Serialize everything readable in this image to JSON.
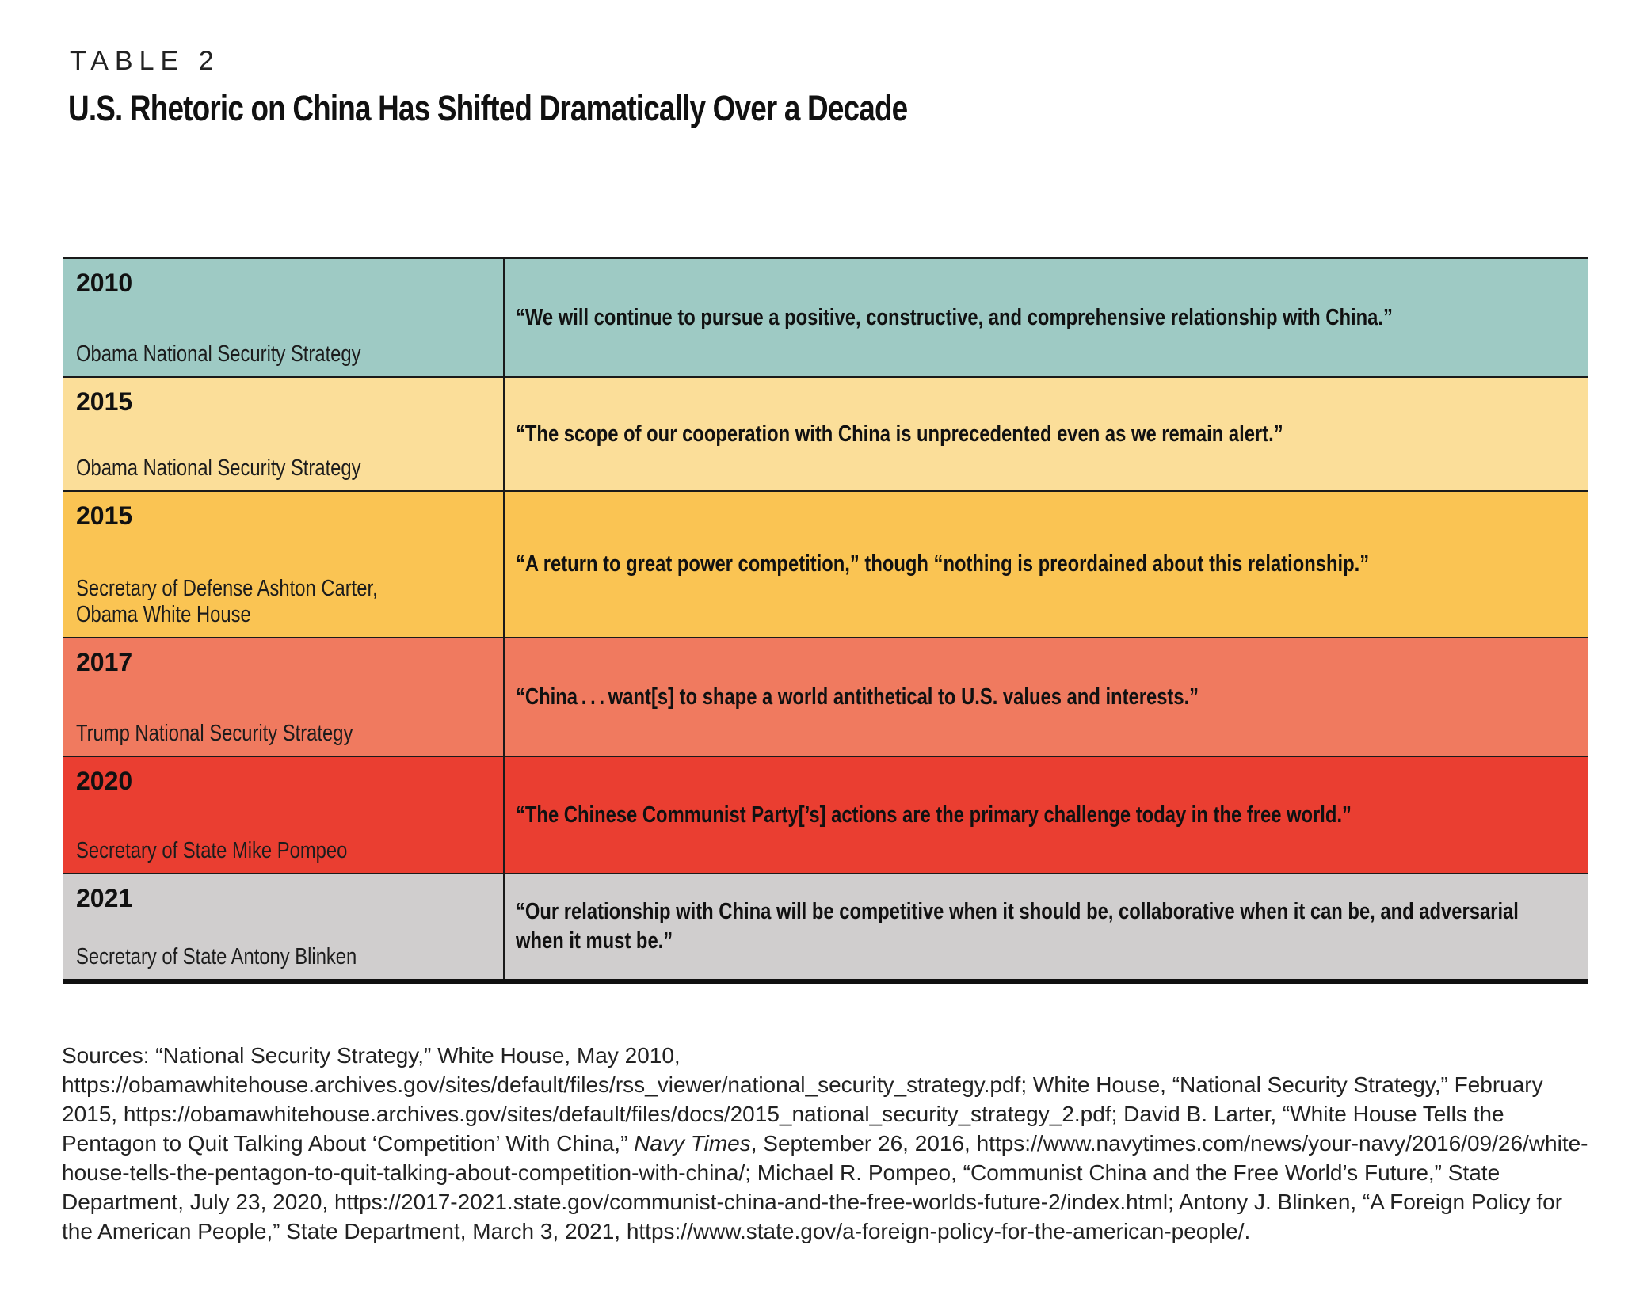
{
  "page": {
    "kicker": "TABLE 2",
    "title": "U.S. Rhetoric on China Has Shifted Dramatically Over a Decade"
  },
  "table": {
    "rows": [
      {
        "year": "2010",
        "source": "Obama National Security Strategy",
        "quote": "“We will continue to pursue a positive, constructive, and comprehensive relationship with China.”",
        "bg": "#9ECAC4"
      },
      {
        "year": "2015",
        "source": "Obama National Security Strategy",
        "quote": "“The scope of our cooperation with China is unprecedented even as we remain alert.”",
        "bg": "#FBDE99"
      },
      {
        "year": "2015",
        "source": "Secretary of Defense Ashton Carter,\nObama White House",
        "quote": "“A return to great power competition,” though “nothing is preordained about this relationship.”",
        "bg": "#FAC453"
      },
      {
        "year": "2017",
        "source": "Trump National Security Strategy",
        "quote": "“China . . . want[s] to shape a world antithetical to U.S. values and interests.”",
        "bg": "#F07A5F"
      },
      {
        "year": "2020",
        "source": "Secretary of State Mike Pompeo",
        "quote": "“The Chinese Communist Party[’s] actions are the primary challenge today in the free world.”",
        "bg": "#EA3E31"
      },
      {
        "year": "2021",
        "source": "Secretary of State Antony Blinken",
        "quote": "“Our relationship with China will be competitive when it should be, collaborative when it can be, and adversarial when it must be.”",
        "bg": "#D0CECE"
      }
    ]
  },
  "sources": {
    "segments": [
      {
        "text": "Sources: “National Security Strategy,” White House, May 2010, https://obamawhitehouse.archives.gov/sites/default/files/rss_viewer/national_security_strategy.pdf; White House, “National Security Strategy,” February 2015, https://obamawhitehouse.archives.gov/sites/default/files/docs/2015_national_security_strategy_2.pdf; David B. Larter, “White House Tells the Pentagon to Quit Talking About ‘Competition’ With China,” ",
        "italic": false
      },
      {
        "text": "Navy Times",
        "italic": true
      },
      {
        "text": ", September 26, 2016, https://www.navytimes.com/news/your-navy/2016/09/26/white-house-tells-the-pentagon-to-quit-talking-about-competition-with-china/; Michael R. Pompeo, “Communist China and the Free World’s Future,” State Department, July 23, 2020, https://2017-2021.state.gov/communist-china-and-the-free-worlds-future-2/index.html; Antony J. Blinken, “A Foreign Policy for the American People,” State Department, March 3, 2021, https://www.state.gov/a-foreign-policy-for-the-american-people/.",
        "italic": false
      }
    ]
  },
  "colors": {
    "row_2010": "#9ECAC4",
    "row_2015_nss": "#FBDE99",
    "row_2015_carter": "#FAC453",
    "row_2017": "#F07A5F",
    "row_2020": "#EA3E31",
    "row_2021": "#D0CECE",
    "border": "#1A1A1A",
    "text": "#111111"
  }
}
